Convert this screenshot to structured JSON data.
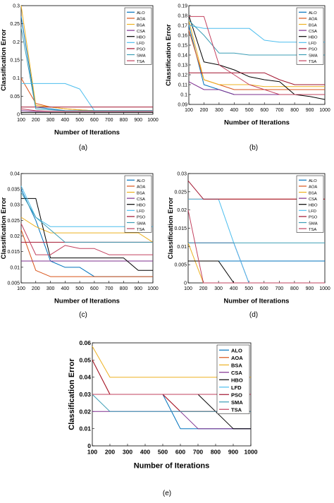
{
  "panel_labels": [
    "(a)",
    "(b)",
    "(c)",
    "(d)",
    "(e)"
  ],
  "legend_entries": [
    "ALO",
    "AOA",
    "BSA",
    "CSA",
    "HBO",
    "LFD",
    "PSO",
    "SMA",
    "TSA"
  ],
  "series_colors": {
    "ALO": "#0072BD",
    "AOA": "#D95319",
    "BSA": "#EDB120",
    "CSA": "#7E2F8E",
    "HBO": "#000000",
    "LFD": "#4DBEEE",
    "PSO": "#A2142F",
    "SMA": "#3C9DB5",
    "TSA": "#C2405E"
  },
  "chart_data": [
    {
      "type": "line",
      "title": "",
      "xlabel": "Number of Iterations",
      "ylabel": "Classification Error",
      "xlim": [
        100,
        1000
      ],
      "ylim": [
        0,
        0.3
      ],
      "xticks": [
        100,
        200,
        300,
        400,
        500,
        600,
        700,
        800,
        900,
        1000
      ],
      "yticks": [
        0,
        0.05,
        0.1,
        0.15,
        0.2,
        0.25,
        0.3
      ],
      "ytick_labels": [
        "0",
        "0.05",
        "0.1",
        "0.15",
        "0.2",
        "0.25",
        "0.3"
      ],
      "legend": "top-right",
      "x": [
        100,
        200,
        300,
        400,
        500,
        600,
        700,
        800,
        900,
        1000
      ],
      "series": [
        {
          "name": "ALO",
          "values": [
            0.27,
            0.02,
            0.015,
            0.01,
            0.008,
            0.008,
            0.008,
            0.008,
            0.008,
            0.008
          ]
        },
        {
          "name": "AOA",
          "values": [
            0.1,
            0.03,
            0.02,
            0.015,
            0.012,
            0.01,
            0.01,
            0.01,
            0.01,
            0.01
          ]
        },
        {
          "name": "BSA",
          "values": [
            0.3,
            0.025,
            0.02,
            0.015,
            0.012,
            0.01,
            0.01,
            0.01,
            0.01,
            0.01
          ]
        },
        {
          "name": "CSA",
          "values": [
            0.01,
            0.008,
            0.008,
            0.008,
            0.008,
            0.008,
            0.008,
            0.008,
            0.008,
            0.008
          ]
        },
        {
          "name": "HBO",
          "values": [
            0.005,
            0.005,
            0.005,
            0.005,
            0.005,
            0.005,
            0.005,
            0.005,
            0.005,
            0.005
          ]
        },
        {
          "name": "LFD",
          "values": [
            0.085,
            0.085,
            0.085,
            0.085,
            0.07,
            0.01,
            0.01,
            0.01,
            0.01,
            0.01
          ]
        },
        {
          "name": "PSO",
          "values": [
            0.02,
            0.02,
            0.02,
            0.02,
            0.02,
            0.02,
            0.02,
            0.02,
            0.02,
            0.02
          ]
        },
        {
          "name": "SMA",
          "values": [
            0.24,
            0.015,
            0.012,
            0.01,
            0.01,
            0.01,
            0.01,
            0.01,
            0.01,
            0.01
          ]
        },
        {
          "name": "TSA",
          "values": [
            0.015,
            0.01,
            0.008,
            0.008,
            0.008,
            0.008,
            0.008,
            0.008,
            0.008,
            0.008
          ]
        }
      ]
    },
    {
      "type": "line",
      "title": "",
      "xlabel": "Number of Iterations",
      "ylabel": "Classification Error",
      "xlim": [
        100,
        1000
      ],
      "ylim": [
        0.09,
        0.19
      ],
      "xticks": [
        100,
        200,
        300,
        400,
        500,
        600,
        700,
        800,
        900,
        1000
      ],
      "yticks": [
        0.09,
        0.1,
        0.11,
        0.12,
        0.13,
        0.14,
        0.15,
        0.16,
        0.17,
        0.18,
        0.19
      ],
      "ytick_labels": [
        "0.09",
        "0.1",
        "0.11",
        "0.12",
        "0.13",
        "0.14",
        "0.15",
        "0.16",
        "0.17",
        "0.18",
        "0.19"
      ],
      "legend": "top-right",
      "x": [
        100,
        200,
        300,
        400,
        500,
        600,
        700,
        800,
        900,
        1000
      ],
      "series": [
        {
          "name": "ALO",
          "values": [
            0.17,
            0.11,
            0.105,
            0.1,
            0.1,
            0.1,
            0.1,
            0.1,
            0.1,
            0.1
          ]
        },
        {
          "name": "AOA",
          "values": [
            0.165,
            0.115,
            0.11,
            0.105,
            0.105,
            0.105,
            0.105,
            0.105,
            0.105,
            0.105
          ]
        },
        {
          "name": "BSA",
          "values": [
            0.175,
            0.115,
            0.11,
            0.11,
            0.11,
            0.108,
            0.108,
            0.108,
            0.108,
            0.108
          ]
        },
        {
          "name": "CSA",
          "values": [
            0.113,
            0.105,
            0.105,
            0.1,
            0.1,
            0.1,
            0.1,
            0.1,
            0.1,
            0.1
          ]
        },
        {
          "name": "HBO",
          "values": [
            0.18,
            0.133,
            0.13,
            0.125,
            0.118,
            0.115,
            0.113,
            0.1,
            0.098,
            0.095
          ]
        },
        {
          "name": "LFD",
          "values": [
            0.17,
            0.167,
            0.167,
            0.167,
            0.167,
            0.155,
            0.153,
            0.153,
            0.153,
            0.153
          ]
        },
        {
          "name": "PSO",
          "values": [
            0.122,
            0.122,
            0.122,
            0.122,
            0.122,
            0.122,
            0.115,
            0.11,
            0.11,
            0.11
          ]
        },
        {
          "name": "SMA",
          "values": [
            0.175,
            0.16,
            0.142,
            0.142,
            0.14,
            0.14,
            0.14,
            0.14,
            0.14,
            0.14
          ]
        },
        {
          "name": "TSA",
          "values": [
            0.179,
            0.179,
            0.13,
            0.12,
            0.11,
            0.105,
            0.1,
            0.1,
            0.1,
            0.1
          ]
        }
      ]
    },
    {
      "type": "line",
      "title": "",
      "xlabel": "Number of Iterations",
      "ylabel": "Classification Error",
      "xlim": [
        100,
        1000
      ],
      "ylim": [
        0.005,
        0.04
      ],
      "xticks": [
        100,
        200,
        300,
        400,
        500,
        600,
        700,
        800,
        900,
        1000
      ],
      "yticks": [
        0.005,
        0.01,
        0.015,
        0.02,
        0.025,
        0.03,
        0.035,
        0.04
      ],
      "ytick_labels": [
        "0.005",
        "0.01",
        "0.015",
        "0.02",
        "0.025",
        "0.03",
        "0.035",
        "0.04"
      ],
      "legend": "top-right",
      "x": [
        100,
        200,
        300,
        400,
        500,
        600,
        700,
        800,
        900,
        1000
      ],
      "series": [
        {
          "name": "ALO",
          "values": [
            0.035,
            0.025,
            0.012,
            0.01,
            0.01,
            0.007,
            0.007,
            0.007,
            0.007,
            0.007
          ]
        },
        {
          "name": "AOA",
          "values": [
            0.022,
            0.009,
            0.007,
            0.007,
            0.007,
            0.007,
            0.007,
            0.007,
            0.007,
            0.007
          ]
        },
        {
          "name": "BSA",
          "values": [
            0.026,
            0.023,
            0.021,
            0.021,
            0.021,
            0.021,
            0.021,
            0.021,
            0.021,
            0.018
          ]
        },
        {
          "name": "CSA",
          "values": [
            0.012,
            0.012,
            0.012,
            0.012,
            0.012,
            0.012,
            0.012,
            0.012,
            0.012,
            0.012
          ]
        },
        {
          "name": "HBO",
          "values": [
            0.032,
            0.032,
            0.013,
            0.013,
            0.013,
            0.013,
            0.013,
            0.013,
            0.009,
            0.009
          ]
        },
        {
          "name": "LFD",
          "values": [
            0.036,
            0.026,
            0.023,
            0.023,
            0.023,
            0.023,
            0.023,
            0.023,
            0.023,
            0.023
          ]
        },
        {
          "name": "PSO",
          "values": [
            0.018,
            0.018,
            0.018,
            0.018,
            0.018,
            0.018,
            0.018,
            0.018,
            0.018,
            0.018
          ]
        },
        {
          "name": "SMA",
          "values": [
            0.034,
            0.026,
            0.022,
            0.018,
            0.018,
            0.018,
            0.018,
            0.018,
            0.018,
            0.018
          ]
        },
        {
          "name": "TSA",
          "values": [
            0.024,
            0.014,
            0.014,
            0.017,
            0.016,
            0.016,
            0.014,
            0.014,
            0.014,
            0.014
          ]
        }
      ]
    },
    {
      "type": "line",
      "title": "",
      "xlabel": "Number of Iterations",
      "ylabel": "Classification Error",
      "xlim": [
        100,
        1000
      ],
      "ylim": [
        0,
        0.03
      ],
      "xticks": [
        100,
        200,
        300,
        400,
        500,
        600,
        700,
        800,
        900,
        1000
      ],
      "yticks": [
        0,
        0.005,
        0.01,
        0.015,
        0.02,
        0.025,
        0.03
      ],
      "ytick_labels": [
        "0",
        "0.005",
        "0.01",
        "0.015",
        "0.02",
        "0.025",
        "0.03"
      ],
      "legend": "top-right",
      "x": [
        100,
        200,
        300,
        400,
        500,
        600,
        700,
        800,
        900,
        1000
      ],
      "series": [
        {
          "name": "ALO",
          "values": [
            0.006,
            0.006,
            0.006,
            0.006,
            0.006,
            0.006,
            0.006,
            0.006,
            0.006,
            0.006
          ]
        },
        {
          "name": "AOA",
          "values": [
            0.023,
            0.023,
            0.023,
            0.023,
            0.023,
            0.023,
            0.023,
            0.023,
            0.023,
            0.023
          ]
        },
        {
          "name": "BSA",
          "values": [
            0.011,
            0,
            0,
            0,
            0,
            0,
            0,
            0,
            0,
            0
          ]
        },
        {
          "name": "CSA",
          "values": [
            0.011,
            0.011,
            0.011,
            0.011,
            0,
            0,
            0,
            0,
            0,
            0
          ]
        },
        {
          "name": "HBO",
          "values": [
            0.006,
            0.006,
            0.006,
            0,
            0,
            0,
            0,
            0,
            0,
            0
          ]
        },
        {
          "name": "LFD",
          "values": [
            0.023,
            0.023,
            0.023,
            0.011,
            0,
            0,
            0,
            0,
            0,
            0
          ]
        },
        {
          "name": "PSO",
          "values": [
            0.028,
            0.023,
            0.023,
            0.023,
            0.023,
            0.023,
            0.023,
            0.023,
            0.023,
            0.023
          ]
        },
        {
          "name": "SMA",
          "values": [
            0.011,
            0.011,
            0.011,
            0.011,
            0.011,
            0.011,
            0.011,
            0.011,
            0.011,
            0.011
          ]
        },
        {
          "name": "TSA",
          "values": [
            0.02,
            0,
            0,
            0,
            0,
            0,
            0,
            0,
            0,
            0
          ]
        }
      ]
    },
    {
      "type": "line",
      "title": "",
      "xlabel": "Number of Iterations",
      "ylabel": "Classification Error",
      "xlim": [
        100,
        1000
      ],
      "ylim": [
        0,
        0.06
      ],
      "xticks": [
        100,
        200,
        300,
        400,
        500,
        600,
        700,
        800,
        900,
        1000
      ],
      "yticks": [
        0,
        0.01,
        0.02,
        0.03,
        0.04,
        0.05,
        0.06
      ],
      "ytick_labels": [
        "0",
        "0.01",
        "0.02",
        "0.03",
        "0.04",
        "0.05",
        "0.06"
      ],
      "legend": "top-right",
      "x": [
        100,
        200,
        300,
        400,
        500,
        600,
        700,
        800,
        900,
        1000
      ],
      "series": [
        {
          "name": "ALO",
          "values": [
            0.03,
            0.03,
            0.03,
            0.03,
            0.03,
            0.01,
            0.01,
            0.01,
            0.01,
            0.01
          ]
        },
        {
          "name": "AOA",
          "values": [
            0.05,
            0.03,
            0.03,
            0.03,
            0.03,
            0.02,
            0.02,
            0.02,
            0.02,
            0.02
          ]
        },
        {
          "name": "BSA",
          "values": [
            0.058,
            0.04,
            0.04,
            0.04,
            0.04,
            0.04,
            0.04,
            0.04,
            0.04,
            0.04
          ]
        },
        {
          "name": "CSA",
          "values": [
            0.02,
            0.02,
            0.02,
            0.02,
            0.02,
            0.02,
            0.01,
            0.01,
            0.01,
            0.01
          ]
        },
        {
          "name": "HBO",
          "values": [
            0.03,
            0.03,
            0.03,
            0.03,
            0.03,
            0.03,
            0.03,
            0.02,
            0.01,
            0.01
          ]
        },
        {
          "name": "LFD",
          "values": [
            0.03,
            0.03,
            0.03,
            0.03,
            0.03,
            0.03,
            0.03,
            0.03,
            0.03,
            0.03
          ]
        },
        {
          "name": "PSO",
          "values": [
            0.05,
            0.03,
            0.03,
            0.03,
            0.03,
            0.02,
            0.02,
            0.02,
            0.02,
            0.02
          ]
        },
        {
          "name": "SMA",
          "values": [
            0.03,
            0.02,
            0.02,
            0.02,
            0.02,
            0.02,
            0.02,
            0.02,
            0.02,
            0.02
          ]
        },
        {
          "name": "TSA",
          "values": [
            0.03,
            0.03,
            0.03,
            0.03,
            0.03,
            0.03,
            0.03,
            0.03,
            0.03,
            0.03
          ]
        }
      ]
    }
  ]
}
